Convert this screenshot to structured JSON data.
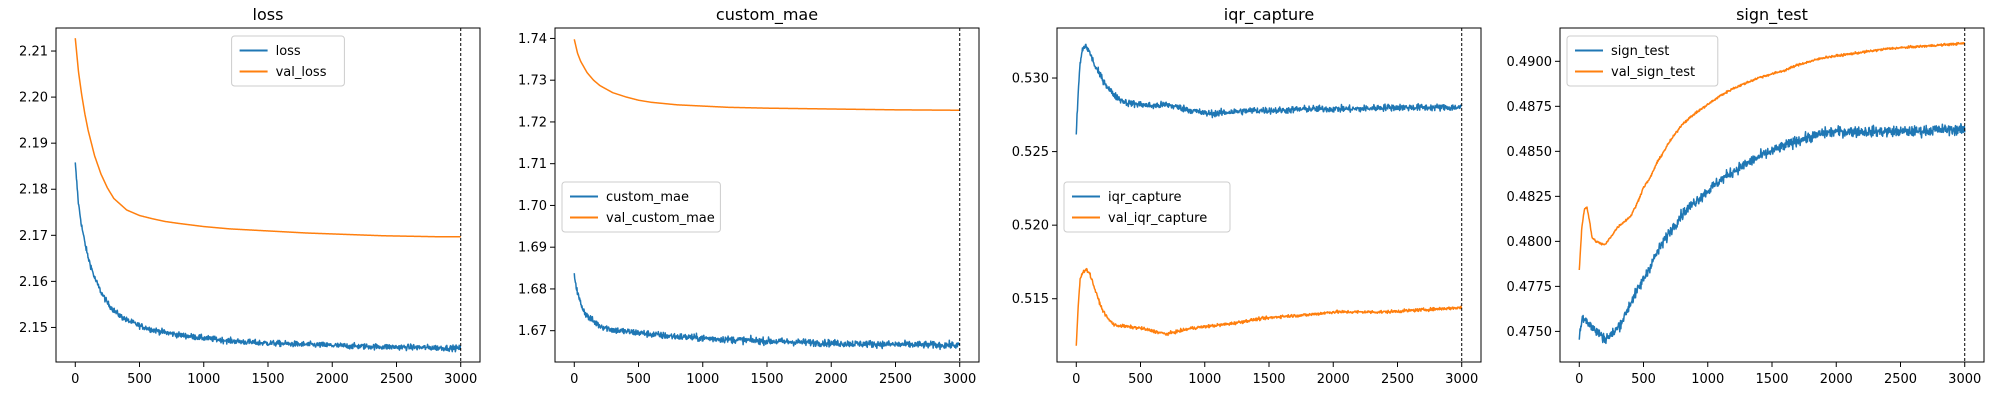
{
  "figure": {
    "background": "#ffffff"
  },
  "chart_data": [
    {
      "type": "line",
      "title": "loss",
      "xlabel": "",
      "ylabel": "",
      "xlim": [
        -150,
        3150
      ],
      "ylim": [
        2.1425,
        2.215
      ],
      "xticks": [
        0,
        500,
        1000,
        1500,
        2000,
        2500,
        3000
      ],
      "xtick_labels": [
        "0",
        "500",
        "1000",
        "1500",
        "2000",
        "2500",
        "3000"
      ],
      "yticks": [
        2.15,
        2.16,
        2.17,
        2.18,
        2.19,
        2.2,
        2.21
      ],
      "ytick_labels": [
        "2.15",
        "2.16",
        "2.17",
        "2.18",
        "2.19",
        "2.20",
        "2.21"
      ],
      "legend": {
        "position": "upper-center"
      },
      "vline_x": 3000,
      "grid": false,
      "series": [
        {
          "name": "loss",
          "color": "#1f77b4",
          "noise": 0.0006,
          "x": [
            0,
            25,
            50,
            75,
            100,
            150,
            200,
            250,
            300,
            350,
            400,
            500,
            600,
            700,
            800,
            1000,
            1200,
            1400,
            1600,
            1800,
            2000,
            2200,
            2400,
            2600,
            2800,
            3000
          ],
          "y": [
            2.1855,
            2.1768,
            2.172,
            2.1683,
            2.1652,
            2.1608,
            2.1577,
            2.1553,
            2.1537,
            2.1525,
            2.1516,
            2.1504,
            2.1495,
            2.1489,
            2.1484,
            2.1477,
            2.1471,
            2.1467,
            2.1465,
            2.1463,
            2.1461,
            2.1459,
            2.1458,
            2.1457,
            2.1456,
            2.1455
          ]
        },
        {
          "name": "val_loss",
          "color": "#ff7f0e",
          "noise": 0,
          "x": [
            0,
            25,
            50,
            75,
            100,
            150,
            200,
            250,
            300,
            400,
            500,
            600,
            700,
            800,
            1000,
            1200,
            1400,
            1600,
            1800,
            2000,
            2200,
            2400,
            2600,
            2800,
            3000
          ],
          "y": [
            2.2128,
            2.2055,
            2.2005,
            2.1963,
            2.1928,
            2.1873,
            2.1833,
            2.1803,
            2.178,
            2.1755,
            2.1743,
            2.1736,
            2.173,
            2.1726,
            2.1719,
            2.1714,
            2.1711,
            2.1708,
            2.1705,
            2.1703,
            2.1701,
            2.1699,
            2.1698,
            2.1697,
            2.1697
          ]
        }
      ]
    },
    {
      "type": "line",
      "title": "custom_mae",
      "xlabel": "",
      "ylabel": "",
      "xlim": [
        -150,
        3150
      ],
      "ylim": [
        1.6625,
        1.7425
      ],
      "xticks": [
        0,
        500,
        1000,
        1500,
        2000,
        2500,
        3000
      ],
      "xtick_labels": [
        "0",
        "500",
        "1000",
        "1500",
        "2000",
        "2500",
        "3000"
      ],
      "yticks": [
        1.67,
        1.68,
        1.69,
        1.7,
        1.71,
        1.72,
        1.73,
        1.74
      ],
      "ytick_labels": [
        "1.67",
        "1.68",
        "1.69",
        "1.70",
        "1.71",
        "1.72",
        "1.73",
        "1.74"
      ],
      "legend": {
        "position": "center-left"
      },
      "vline_x": 3000,
      "grid": false,
      "series": [
        {
          "name": "custom_mae",
          "color": "#1f77b4",
          "noise": 0.0008,
          "x": [
            0,
            25,
            50,
            75,
            100,
            150,
            200,
            300,
            400,
            500,
            700,
            1000,
            1200,
            1500,
            2000,
            2500,
            3000
          ],
          "y": [
            1.6835,
            1.679,
            1.6765,
            1.6748,
            1.6735,
            1.6722,
            1.6712,
            1.6702,
            1.6698,
            1.6695,
            1.6688,
            1.6682,
            1.6679,
            1.6675,
            1.667,
            1.6667,
            1.6665
          ]
        },
        {
          "name": "val_custom_mae",
          "color": "#ff7f0e",
          "noise": 0,
          "x": [
            0,
            25,
            50,
            100,
            150,
            200,
            300,
            400,
            500,
            600,
            800,
            1000,
            1200,
            1500,
            2000,
            2500,
            3000
          ],
          "y": [
            1.7398,
            1.7365,
            1.7345,
            1.7318,
            1.73,
            1.7287,
            1.727,
            1.726,
            1.7252,
            1.7247,
            1.7241,
            1.7238,
            1.7235,
            1.7233,
            1.7231,
            1.7229,
            1.7228
          ]
        }
      ]
    },
    {
      "type": "line",
      "title": "iqr_capture",
      "xlabel": "",
      "ylabel": "",
      "xlim": [
        -150,
        3150
      ],
      "ylim": [
        0.5107,
        0.5334
      ],
      "xticks": [
        0,
        500,
        1000,
        1500,
        2000,
        2500,
        3000
      ],
      "xtick_labels": [
        "0",
        "500",
        "1000",
        "1500",
        "2000",
        "2500",
        "3000"
      ],
      "yticks": [
        0.515,
        0.52,
        0.525,
        0.53
      ],
      "ytick_labels": [
        "0.515",
        "0.520",
        "0.525",
        "0.530"
      ],
      "legend": {
        "position": "center-left"
      },
      "vline_x": 3000,
      "grid": false,
      "series": [
        {
          "name": "iqr_capture",
          "color": "#1f77b4",
          "noise": 0.00022,
          "x": [
            0,
            15,
            30,
            50,
            75,
            100,
            125,
            150,
            200,
            250,
            300,
            350,
            400,
            500,
            600,
            700,
            800,
            900,
            1000,
            1100,
            1200,
            1400,
            1600,
            1800,
            2000,
            2200,
            2400,
            2600,
            2800,
            3000
          ],
          "y": [
            0.5262,
            0.529,
            0.531,
            0.532,
            0.5322,
            0.5318,
            0.5313,
            0.5307,
            0.53,
            0.5293,
            0.5288,
            0.5285,
            0.5283,
            0.5282,
            0.5281,
            0.5282,
            0.528,
            0.5278,
            0.5276,
            0.5276,
            0.5277,
            0.5278,
            0.5278,
            0.5279,
            0.5279,
            0.5279,
            0.528,
            0.528,
            0.528,
            0.528
          ]
        },
        {
          "name": "val_iqr_capture",
          "color": "#ff7f0e",
          "noise": 0.0001,
          "x": [
            0,
            15,
            30,
            50,
            75,
            100,
            125,
            150,
            200,
            250,
            300,
            400,
            500,
            600,
            700,
            800,
            900,
            1000,
            1100,
            1200,
            1400,
            1600,
            1800,
            2000,
            2200,
            2400,
            2600,
            2800,
            3000
          ],
          "y": [
            0.5118,
            0.5145,
            0.5163,
            0.5168,
            0.517,
            0.5168,
            0.5162,
            0.5155,
            0.5143,
            0.5136,
            0.5132,
            0.5131,
            0.513,
            0.5128,
            0.5126,
            0.5128,
            0.513,
            0.5131,
            0.5132,
            0.5133,
            0.5136,
            0.5138,
            0.5139,
            0.5141,
            0.5141,
            0.5141,
            0.5142,
            0.5143,
            0.5144
          ]
        }
      ]
    },
    {
      "type": "line",
      "title": "sign_test",
      "xlabel": "",
      "ylabel": "",
      "xlim": [
        -150,
        3150
      ],
      "ylim": [
        0.4733,
        0.49185
      ],
      "xticks": [
        0,
        500,
        1000,
        1500,
        2000,
        2500,
        3000
      ],
      "xtick_labels": [
        "0",
        "500",
        "1000",
        "1500",
        "2000",
        "2500",
        "3000"
      ],
      "yticks": [
        0.475,
        0.4775,
        0.48,
        0.4825,
        0.485,
        0.4875,
        0.49
      ],
      "ytick_labels": [
        "0.4750",
        "0.4775",
        "0.4800",
        "0.4825",
        "0.4850",
        "0.4875",
        "0.4900"
      ],
      "legend": {
        "position": "upper-left"
      },
      "vline_x": 3000,
      "grid": false,
      "series": [
        {
          "name": "sign_test",
          "color": "#1f77b4",
          "noise": 0.00028,
          "x": [
            0,
            25,
            50,
            100,
            150,
            200,
            250,
            300,
            350,
            400,
            500,
            600,
            700,
            800,
            900,
            1000,
            1100,
            1200,
            1300,
            1400,
            1500,
            1600,
            1700,
            1800,
            1900,
            2000,
            2200,
            2400,
            2600,
            2800,
            3000
          ],
          "y": [
            0.4747,
            0.4758,
            0.4757,
            0.4752,
            0.4749,
            0.4746,
            0.4748,
            0.4752,
            0.4758,
            0.4766,
            0.4779,
            0.4793,
            0.4805,
            0.4815,
            0.4822,
            0.4828,
            0.4834,
            0.4839,
            0.4843,
            0.4847,
            0.485,
            0.4853,
            0.4856,
            0.4858,
            0.486,
            0.4861,
            0.4861,
            0.4861,
            0.4861,
            0.4862,
            0.4862
          ]
        },
        {
          "name": "val_sign_test",
          "color": "#ff7f0e",
          "noise": 6e-05,
          "x": [
            0,
            20,
            40,
            60,
            80,
            100,
            130,
            160,
            200,
            250,
            300,
            350,
            400,
            450,
            500,
            550,
            600,
            700,
            800,
            900,
            1000,
            1100,
            1200,
            1300,
            1400,
            1500,
            1600,
            1700,
            1800,
            1900,
            2000,
            2200,
            2400,
            2600,
            2800,
            3000
          ],
          "y": [
            0.4784,
            0.4808,
            0.4818,
            0.4819,
            0.4811,
            0.4802,
            0.48,
            0.4799,
            0.4798,
            0.4803,
            0.4808,
            0.4811,
            0.4814,
            0.4821,
            0.483,
            0.4835,
            0.4843,
            0.4855,
            0.4865,
            0.4871,
            0.4876,
            0.4881,
            0.4885,
            0.4888,
            0.4891,
            0.4893,
            0.4895,
            0.4898,
            0.49,
            0.4902,
            0.4903,
            0.4905,
            0.4907,
            0.4908,
            0.4909,
            0.491
          ]
        }
      ]
    }
  ]
}
